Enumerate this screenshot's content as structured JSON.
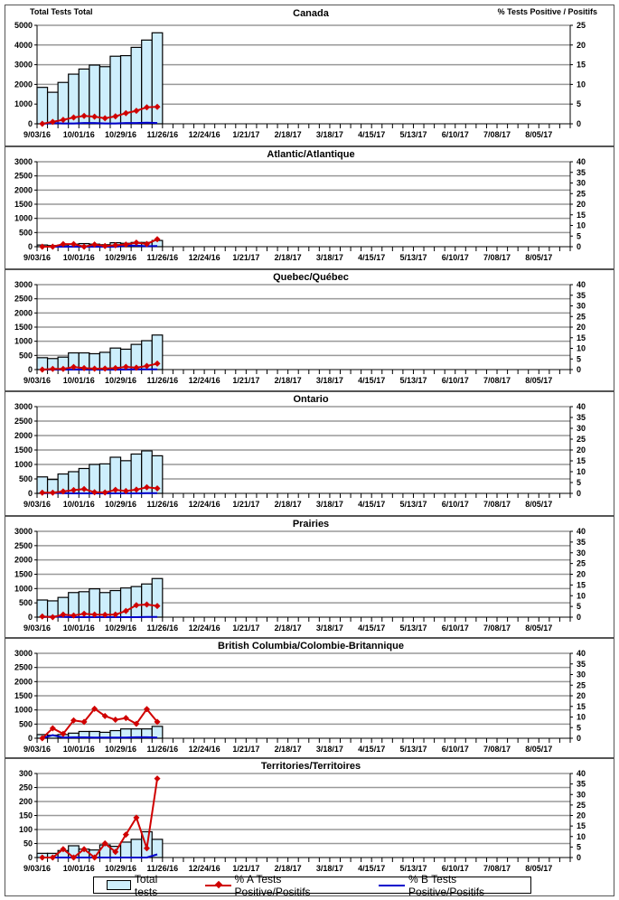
{
  "chart_data": {
    "type": "bar+line",
    "n_week_slots": 51,
    "x_tick_labels": [
      "9/03/16",
      "10/01/16",
      "10/29/16",
      "11/26/16",
      "12/24/16",
      "1/21/17",
      "2/18/17",
      "3/18/17",
      "4/15/17",
      "5/13/17",
      "6/10/17",
      "7/08/17",
      "8/05/17"
    ],
    "ylabel_left": "Total Tests Total",
    "ylabel_right": "% Tests Positive / Positifs",
    "legend": {
      "total": "Total tests",
      "pct_a": "% A Tests Positive/Positifs",
      "pct_b": "% B Tests Positive/Positifs"
    },
    "colors": {
      "bar": "#cdeefc",
      "pct_a": "#d00000",
      "pct_b": "#0000cc"
    },
    "panels": [
      {
        "title": "Canada",
        "ylim_left": [
          0,
          5000
        ],
        "ystep_left": 1000,
        "ylim_right": [
          0,
          25
        ],
        "ystep_right": 5,
        "total_tests": [
          1850,
          1600,
          2100,
          2520,
          2780,
          2980,
          2900,
          3430,
          3460,
          3880,
          4250,
          4620
        ],
        "pct_a": [
          0,
          0.5,
          1.0,
          1.6,
          2.0,
          1.8,
          1.4,
          1.9,
          2.7,
          3.3,
          4.2,
          4.3
        ],
        "pct_b": [
          0,
          0.2,
          0.1,
          0.1,
          0.2,
          0.2,
          0.1,
          0.1,
          0.2,
          0.2,
          0.3,
          0.2
        ]
      },
      {
        "title": "Atlantic/Atlantique",
        "ylim_left": [
          0,
          3000
        ],
        "ystep_left": 500,
        "ylim_right": [
          0,
          40
        ],
        "ystep_right": 5,
        "total_tests": [
          60,
          40,
          60,
          90,
          110,
          90,
          70,
          140,
          120,
          150,
          150,
          220
        ],
        "pct_a": [
          0,
          0,
          1.2,
          1.2,
          0,
          1.0,
          0.3,
          0.7,
          1.0,
          1.9,
          1.3,
          3.5
        ],
        "pct_b": [
          0,
          0,
          0,
          0,
          0,
          0,
          0,
          0,
          0.5,
          0.5,
          0.2,
          0.3
        ]
      },
      {
        "title": "Quebec/Québec",
        "ylim_left": [
          0,
          3000
        ],
        "ystep_left": 500,
        "ylim_right": [
          0,
          40
        ],
        "ystep_right": 5,
        "total_tests": [
          420,
          390,
          440,
          590,
          590,
          560,
          610,
          760,
          720,
          890,
          1020,
          1220
        ],
        "pct_a": [
          0,
          0.3,
          0.3,
          1.2,
          0.7,
          0.4,
          0.5,
          0.7,
          1.3,
          0.9,
          1.7,
          2.8
        ],
        "pct_b": [
          0,
          0,
          0,
          0,
          0,
          0,
          0,
          0,
          0,
          0.1,
          0.1,
          0.1
        ]
      },
      {
        "title": "Ontario",
        "ylim_left": [
          0,
          3000
        ],
        "ystep_left": 500,
        "ylim_right": [
          0,
          40
        ],
        "ystep_right": 5,
        "total_tests": [
          570,
          480,
          670,
          750,
          860,
          1000,
          1020,
          1250,
          1130,
          1360,
          1470,
          1300
        ],
        "pct_a": [
          0.3,
          0.3,
          0.9,
          1.5,
          2.0,
          0.5,
          0.4,
          1.6,
          1.1,
          1.7,
          2.8,
          2.3
        ],
        "pct_b": [
          0,
          0.3,
          0.1,
          0,
          0,
          0,
          0,
          0,
          0,
          0,
          0.1,
          0.1
        ]
      },
      {
        "title": "Prairies",
        "ylim_left": [
          0,
          3000
        ],
        "ystep_left": 500,
        "ylim_right": [
          0,
          40
        ],
        "ystep_right": 5,
        "total_tests": [
          600,
          570,
          690,
          860,
          890,
          990,
          860,
          930,
          1020,
          1070,
          1160,
          1350
        ],
        "pct_a": [
          0.3,
          0,
          1.2,
          0.8,
          1.6,
          1.2,
          1.1,
          1.2,
          2.9,
          5.6,
          5.9,
          5.2
        ],
        "pct_b": [
          0,
          0.3,
          0.1,
          0,
          0,
          0,
          0,
          0,
          0,
          0,
          0.1,
          0.1
        ]
      },
      {
        "title": "British Columbia/Colombie-Britannique",
        "ylim_left": [
          0,
          3000
        ],
        "ystep_left": 500,
        "ylim_right": [
          0,
          40
        ],
        "ystep_right": 5,
        "total_tests": [
          130,
          110,
          130,
          180,
          240,
          240,
          210,
          270,
          330,
          330,
          330,
          420
        ],
        "pct_a": [
          0,
          4.7,
          2.1,
          8.4,
          7.7,
          13.9,
          10.5,
          8.7,
          9.5,
          6.8,
          13.7,
          7.7
        ],
        "pct_b": [
          0,
          1.5,
          0.3,
          0.4,
          0.4,
          0.3,
          0.3,
          0.3,
          0.3,
          0.5,
          0.5,
          0.3
        ]
      },
      {
        "title": "Territories/Territoires",
        "ylim_left": [
          0,
          300
        ],
        "ystep_left": 50,
        "ylim_right": [
          0,
          40
        ],
        "ystep_right": 5,
        "total_tests": [
          15,
          15,
          25,
          42,
          30,
          27,
          45,
          40,
          55,
          65,
          92,
          65
        ],
        "pct_a": [
          0,
          0,
          4,
          0,
          4,
          0,
          6.7,
          2.7,
          10.9,
          19,
          4.4,
          37.6
        ],
        "pct_b": [
          0,
          0,
          0,
          0,
          0,
          0,
          0,
          0,
          0,
          0,
          0,
          1.5
        ]
      }
    ]
  }
}
